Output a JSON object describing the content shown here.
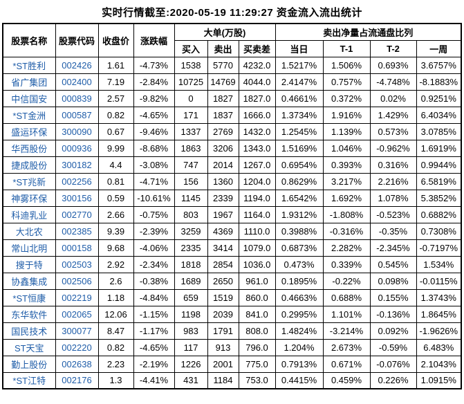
{
  "title": "实时行情截至:2020-05-19 11:29:27 资金流入流出统计",
  "colors": {
    "stock_link_blue": "#1e5ca8",
    "table_border": "#000000",
    "text": "#000000",
    "background": "#ffffff"
  },
  "table": {
    "headers": {
      "name": "股票名称",
      "code": "股票代码",
      "close": "收盘价",
      "change": "涨跌幅",
      "big_order_group": "大单(万股)",
      "net_sell_group": "卖出净量占流通盘比列",
      "sub": [
        "买入",
        "卖出",
        "买卖差",
        "当日",
        "T-1",
        "T-2",
        "一周"
      ]
    },
    "rows": [
      [
        "*ST胜利",
        "002426",
        "1.61",
        "-4.73%",
        "1538",
        "5770",
        "4232.0",
        "1.5217%",
        "1.506%",
        "0.693%",
        "3.6757%"
      ],
      [
        "省广集团",
        "002400",
        "7.19",
        "-2.84%",
        "10725",
        "14769",
        "4044.0",
        "2.4147%",
        "0.757%",
        "-4.748%",
        "-8.1883%"
      ],
      [
        "中信国安",
        "000839",
        "2.57",
        "-9.82%",
        "0",
        "1827",
        "1827.0",
        "0.4661%",
        "0.372%",
        "0.02%",
        "0.9251%"
      ],
      [
        "*ST金洲",
        "000587",
        "0.82",
        "-4.65%",
        "171",
        "1837",
        "1666.0",
        "1.3734%",
        "1.916%",
        "1.429%",
        "6.4034%"
      ],
      [
        "盛运环保",
        "300090",
        "0.67",
        "-9.46%",
        "1337",
        "2769",
        "1432.0",
        "1.2545%",
        "1.139%",
        "0.573%",
        "3.0785%"
      ],
      [
        "华西股份",
        "000936",
        "9.99",
        "-8.68%",
        "1863",
        "3206",
        "1343.0",
        "1.5169%",
        "1.046%",
        "-0.962%",
        "1.6919%"
      ],
      [
        "捷成股份",
        "300182",
        "4.4",
        "-3.08%",
        "747",
        "2014",
        "1267.0",
        "0.6954%",
        "0.393%",
        "0.316%",
        "0.9944%"
      ],
      [
        "*ST兆新",
        "002256",
        "0.81",
        "-4.71%",
        "156",
        "1360",
        "1204.0",
        "0.8629%",
        "3.217%",
        "2.216%",
        "6.5819%"
      ],
      [
        "神雾环保",
        "300156",
        "0.59",
        "-10.61%",
        "1145",
        "2339",
        "1194.0",
        "1.6542%",
        "1.692%",
        "1.078%",
        "5.3852%"
      ],
      [
        "科迪乳业",
        "002770",
        "2.66",
        "-0.75%",
        "803",
        "1967",
        "1164.0",
        "1.9312%",
        "-1.808%",
        "-0.523%",
        "0.6882%"
      ],
      [
        "大北农",
        "002385",
        "9.39",
        "-2.39%",
        "3259",
        "4369",
        "1110.0",
        "0.3988%",
        "-0.316%",
        "-0.35%",
        "0.7308%"
      ],
      [
        "常山北明",
        "000158",
        "9.68",
        "-4.06%",
        "2335",
        "3414",
        "1079.0",
        "0.6873%",
        "2.282%",
        "-2.345%",
        "-0.7197%"
      ],
      [
        "搜于特",
        "002503",
        "2.92",
        "-2.34%",
        "1818",
        "2854",
        "1036.0",
        "0.473%",
        "0.339%",
        "0.545%",
        "1.534%"
      ],
      [
        "协鑫集成",
        "002506",
        "2.6",
        "-0.38%",
        "1689",
        "2650",
        "961.0",
        "0.1895%",
        "-0.22%",
        "0.098%",
        "-0.0115%"
      ],
      [
        "*ST恒康",
        "002219",
        "1.18",
        "-4.84%",
        "659",
        "1519",
        "860.0",
        "0.4663%",
        "0.688%",
        "0.155%",
        "1.3743%"
      ],
      [
        "东华软件",
        "002065",
        "12.06",
        "-1.15%",
        "1198",
        "2039",
        "841.0",
        "0.2995%",
        "1.101%",
        "-0.136%",
        "1.8645%"
      ],
      [
        "国民技术",
        "300077",
        "8.47",
        "-1.17%",
        "983",
        "1791",
        "808.0",
        "1.4824%",
        "-3.214%",
        "0.092%",
        "-1.9626%"
      ],
      [
        "ST天宝",
        "002220",
        "0.82",
        "-4.65%",
        "117",
        "913",
        "796.0",
        "1.204%",
        "2.673%",
        "-0.59%",
        "6.483%"
      ],
      [
        "勤上股份",
        "002638",
        "2.23",
        "-2.19%",
        "1226",
        "2001",
        "775.0",
        "0.7913%",
        "0.671%",
        "-0.076%",
        "2.1043%"
      ],
      [
        "*ST江特",
        "002176",
        "1.3",
        "-4.41%",
        "431",
        "1184",
        "753.0",
        "0.4415%",
        "0.459%",
        "0.226%",
        "1.0915%"
      ]
    ]
  }
}
